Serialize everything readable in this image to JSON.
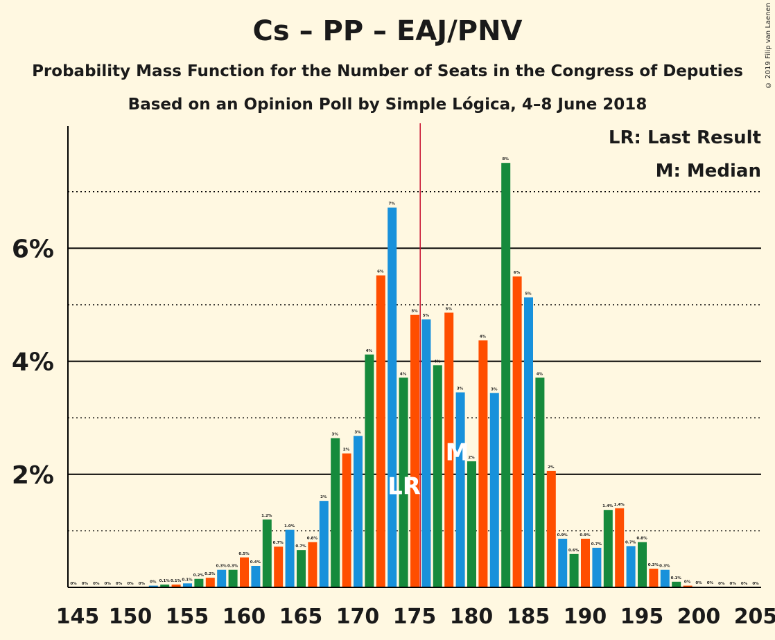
{
  "title": "Cs – PP – EAJ/PNV",
  "subtitle": "Probability Mass Function for the Number of Seats in the Congress of Deputies",
  "subtitle2": "Based on an Opinion Poll by Simple Lógica, 4–8 June 2018",
  "copyright": "© 2019 Filip van Laenen",
  "legend": {
    "last_result": "LR: Last Result",
    "median": "M: Median"
  },
  "colors": {
    "background": "#FFF8E1",
    "orange": "#FF4E00",
    "blue": "#1891DB",
    "green": "#168A3C",
    "majority_line": "#C8102E"
  },
  "chart_data": {
    "type": "bar",
    "x": [
      145,
      146,
      147,
      148,
      149,
      150,
      151,
      152,
      153,
      154,
      155,
      156,
      157,
      158,
      159,
      160,
      161,
      162,
      163,
      164,
      165,
      166,
      167,
      168,
      169,
      170,
      171,
      172,
      173,
      174,
      175,
      176,
      177,
      178,
      179,
      180,
      181,
      182,
      183,
      184,
      185,
      186,
      187,
      188,
      189,
      190,
      191,
      192,
      193,
      194,
      195,
      196,
      197,
      198,
      199,
      200,
      201,
      202,
      203,
      204,
      205
    ],
    "values": [
      0,
      0,
      0,
      0,
      0,
      0,
      0,
      0.03,
      0.05,
      0.05,
      0.07,
      0.15,
      0.17,
      0.31,
      0.31,
      0.53,
      0.38,
      1.2,
      0.72,
      1.02,
      0.66,
      0.8,
      1.53,
      2.64,
      2.37,
      2.68,
      4.12,
      5.52,
      6.72,
      3.71,
      4.82,
      4.74,
      3.93,
      4.86,
      3.45,
      2.23,
      4.37,
      3.44,
      7.51,
      5.5,
      5.13,
      3.71,
      2.06,
      0.86,
      0.59,
      0.86,
      0.7,
      1.37,
      1.4,
      0.73,
      0.8,
      0.33,
      0.31,
      0.1,
      0.03,
      0.01,
      0.01,
      0,
      0,
      0,
      0
    ],
    "labels": [
      "0%",
      "0%",
      "0%",
      "0%",
      "0%",
      "0%",
      "0%",
      "0%",
      "0.1%",
      "0.1%",
      "0.1%",
      "0.2%",
      "0.2%",
      "0.3%",
      "0.3%",
      "0.5%",
      "0.4%",
      "1.2%",
      "0.7%",
      "1.0%",
      "0.7%",
      "0.8%",
      "2%",
      "3%",
      "2%",
      "3%",
      "4%",
      "6%",
      "7%",
      "4%",
      "5%",
      "5%",
      "4%",
      "5%",
      "3%",
      "2%",
      "4%",
      "3%",
      "8%",
      "6%",
      "5%",
      "4%",
      "2%",
      "0.9%",
      "0.6%",
      "0.9%",
      "0.7%",
      "1.4%",
      "1.4%",
      "0.7%",
      "0.8%",
      "0.3%",
      "0.3%",
      "0.1%",
      "0%",
      "0%",
      "0%",
      "0%",
      "0%",
      "0%",
      "0%"
    ],
    "xlim": [
      145,
      205
    ],
    "ylim": [
      0,
      8.2
    ],
    "yticks": [
      2,
      4,
      6
    ],
    "ytick_labels": [
      "2%",
      "4%",
      "6%"
    ],
    "xticks": [
      145,
      150,
      155,
      160,
      165,
      170,
      175,
      180,
      185,
      190,
      195,
      200,
      205
    ],
    "xtick_labels": [
      "145",
      "150",
      "155",
      "160",
      "165",
      "170",
      "175",
      "180",
      "185",
      "190",
      "195",
      "200",
      "205"
    ],
    "majority_line": 176,
    "last_result": 175,
    "last_result_label": "LR",
    "median": 179,
    "median_label": "M",
    "grid": "dotted minor / solid major horizontal lines"
  }
}
